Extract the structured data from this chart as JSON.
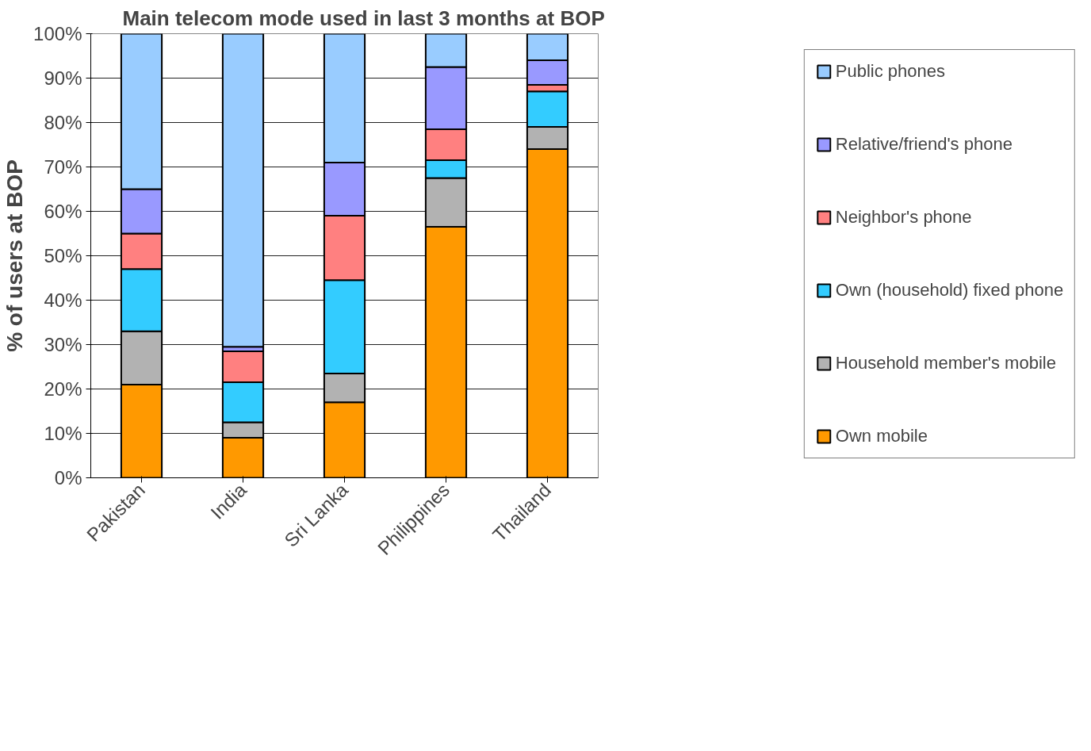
{
  "chart_data": {
    "type": "bar",
    "stacked": true,
    "title": "Main telecom mode used in last 3 months at BOP",
    "ylabel": "% of users at BOP",
    "categories": [
      "Pakistan",
      "India",
      "Sri Lanka",
      "Philippines",
      "Thailand"
    ],
    "series": [
      {
        "name": "Own mobile",
        "color": "#ff9900",
        "values": [
          21,
          9,
          17,
          56.5,
          74
        ]
      },
      {
        "name": "Household member's mobile",
        "color": "#b2b2b2",
        "values": [
          12,
          3.5,
          6.5,
          11,
          5
        ]
      },
      {
        "name": "Own (household) fixed phone",
        "color": "#33ccff",
        "values": [
          14,
          9,
          21,
          4,
          8
        ]
      },
      {
        "name": "Neighbor's phone",
        "color": "#ff8080",
        "values": [
          8,
          7,
          14.5,
          7,
          1.5
        ]
      },
      {
        "name": "Relative/friend's phone",
        "color": "#9999ff",
        "values": [
          10,
          1,
          12,
          14,
          5.5
        ]
      },
      {
        "name": "Public phones",
        "color": "#99ccff",
        "values": [
          35,
          70.5,
          29,
          7.5,
          6
        ]
      }
    ],
    "ylim": [
      0,
      100
    ],
    "yticks": [
      {
        "value": 0,
        "label": "0%"
      },
      {
        "value": 10,
        "label": "10%"
      },
      {
        "value": 20,
        "label": "20%"
      },
      {
        "value": 30,
        "label": "30%"
      },
      {
        "value": 40,
        "label": "40%"
      },
      {
        "value": 50,
        "label": "50%"
      },
      {
        "value": 60,
        "label": "60%"
      },
      {
        "value": 70,
        "label": "70%"
      },
      {
        "value": 80,
        "label": "80%"
      },
      {
        "value": 90,
        "label": "90%"
      },
      {
        "value": 100,
        "label": "100%"
      }
    ],
    "grid": "y",
    "legend": "right"
  }
}
